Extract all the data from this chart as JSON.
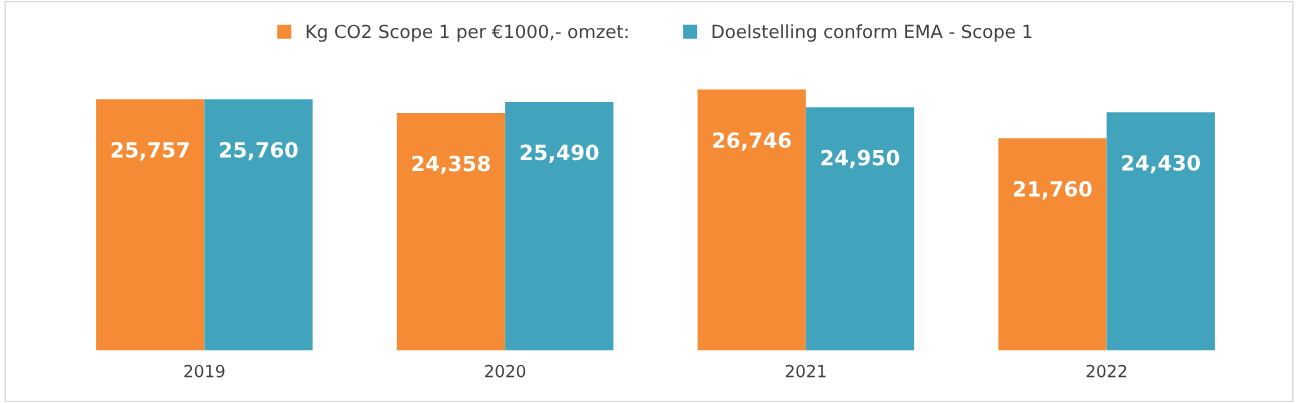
{
  "chart_data": {
    "type": "bar",
    "categories": [
      "2019",
      "2020",
      "2021",
      "2022"
    ],
    "series": [
      {
        "name": "Kg CO2 Scope 1 per €1000,- omzet:",
        "color": "#f58b35",
        "values": [
          25757,
          24358,
          26746,
          21760
        ],
        "value_labels": [
          "25,757",
          "24,358",
          "26,746",
          "21,760"
        ]
      },
      {
        "name": "Doelstelling conform EMA - Scope 1",
        "color": "#41a4bc",
        "values": [
          25760,
          25490,
          24950,
          24430
        ],
        "value_labels": [
          "25,760",
          "25,490",
          "24,950",
          "24,430"
        ]
      }
    ],
    "grid": false,
    "legend": "top"
  }
}
